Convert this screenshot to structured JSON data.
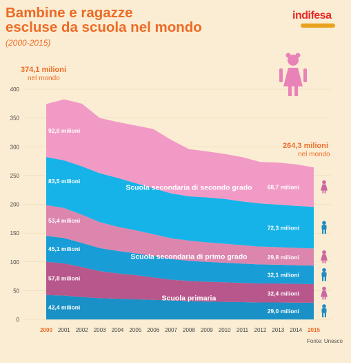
{
  "title_line1": "Bambine e ragazze",
  "title_line2": "escluse da scuola nel mondo",
  "subtitle": "(2000-2015)",
  "logo_text": "indifesa",
  "source": "Fonte: Unesco",
  "total_start": {
    "label": "374,1 milioni",
    "sub": "nel mondo"
  },
  "total_end": {
    "label": "264,3 milioni",
    "sub": "nel mondo"
  },
  "colors": {
    "accent": "#ec6b26",
    "secondaria_secondo_grado": "#f19ac6",
    "secondaria_secondo_grado_blue": "#16b3e8",
    "secondaria_primo_grado": "#dc85ad",
    "secondaria_primo_grado_blue": "#189dd6",
    "primaria": "#b8578b",
    "primaria_blue": "#1991c6"
  },
  "chart_data": {
    "type": "area",
    "ylim": [
      0,
      400
    ],
    "y_ticks": [
      "0",
      "50",
      "100",
      "150",
      "200",
      "250",
      "300",
      "350",
      "400"
    ],
    "x": [
      "2000",
      "2001",
      "2002",
      "2003",
      "2004",
      "2005",
      "2006",
      "2007",
      "2008",
      "2009",
      "2010",
      "2011",
      "2012",
      "2013",
      "2014",
      "2015"
    ],
    "x_highlight": [
      "2000",
      "2015"
    ],
    "series": [
      {
        "key": "primaria_blue",
        "values": [
          42.4,
          41.5,
          39,
          37,
          36,
          35,
          34,
          33,
          32,
          31,
          30.5,
          30,
          29.5,
          29.5,
          29.2,
          29.0
        ]
      },
      {
        "key": "primaria",
        "values": [
          57.8,
          56,
          52,
          47,
          44,
          42,
          39,
          36,
          35,
          34.5,
          34,
          33.5,
          33,
          33,
          32.7,
          32.4
        ]
      },
      {
        "key": "secondaria_primo_grado_blue",
        "values": [
          45.1,
          44,
          42,
          40,
          39,
          38,
          37,
          36,
          35,
          34.5,
          34,
          33.5,
          33,
          32.5,
          32.3,
          32.1
        ]
      },
      {
        "key": "secondaria_primo_grado",
        "values": [
          53.4,
          52,
          49,
          45,
          42,
          40,
          38,
          36,
          35,
          34,
          33,
          32,
          31,
          30.5,
          30.1,
          29.8
        ]
      },
      {
        "key": "secondaria_secondo_grado_blue",
        "values": [
          83.5,
          83,
          84,
          85,
          85,
          82,
          80,
          78,
          77,
          78,
          78,
          76,
          75,
          74,
          73,
          72.3
        ]
      },
      {
        "key": "secondaria_secondo_grado",
        "values": [
          92.0,
          106,
          109,
          96,
          97,
          100,
          103,
          93,
          82,
          80,
          78,
          77,
          72,
          73,
          72,
          68.7
        ]
      }
    ],
    "labels_start": [
      "42,4 milioni",
      "57,8 milioni",
      "45,1 milioni",
      "53,4 milioni",
      "83,5 milioni",
      "92,0 milioni"
    ],
    "labels_end": [
      "29,0 milioni",
      "32,4 milioni",
      "32,1 milioni",
      "29,8 milioni",
      "72,3 milioni",
      "68,7 milioni"
    ],
    "band_labels": [
      {
        "text": "Scuola primaria",
        "x_index": 8,
        "y_value": 33
      },
      {
        "text": "Scuola secondaria di primo grado",
        "x_index": 8,
        "y_value": 105
      },
      {
        "text": "Scuola secondaria di secondo grado",
        "x_index": 8,
        "y_value": 225
      }
    ]
  }
}
